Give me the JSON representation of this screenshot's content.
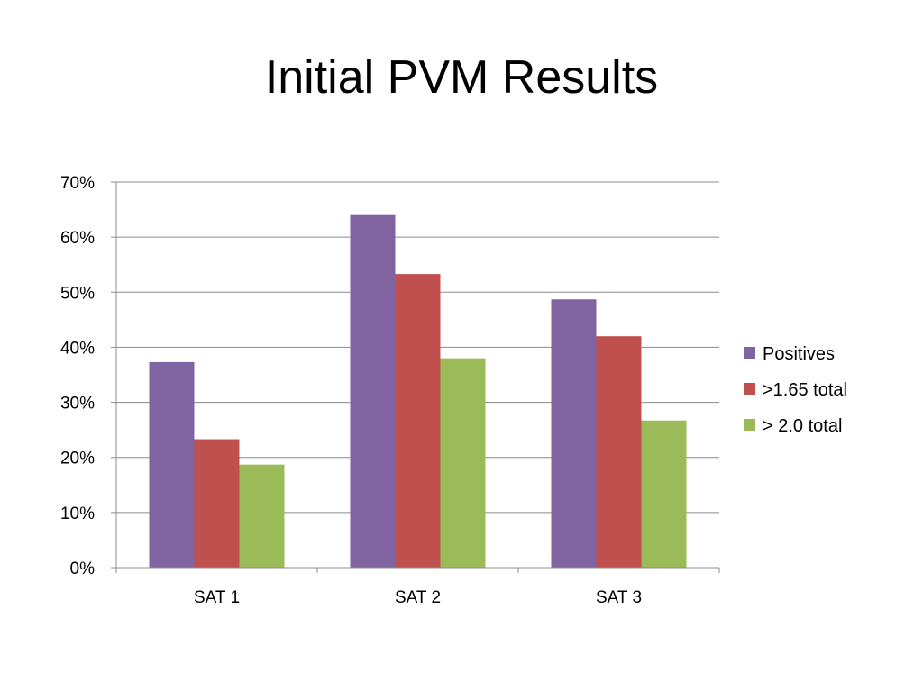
{
  "slide": {
    "title": "Initial PVM Results"
  },
  "chart_data": {
    "type": "bar",
    "categories": [
      "SAT 1",
      "SAT 2",
      "SAT 3"
    ],
    "series": [
      {
        "name": "Positives",
        "values": [
          37.3,
          64.0,
          48.7
        ],
        "color": "#8064a2"
      },
      {
        "name": ">1.65 total",
        "values": [
          23.3,
          53.3,
          42.0
        ],
        "color": "#c0504d"
      },
      {
        "name": "> 2.0 total",
        "values": [
          18.7,
          38.0,
          26.7
        ],
        "color": "#9bbb59"
      }
    ],
    "ylim": [
      0,
      70
    ],
    "yticks": [
      0,
      10,
      20,
      30,
      40,
      50,
      60,
      70
    ],
    "ytick_labels": [
      "0%",
      "10%",
      "20%",
      "30%",
      "40%",
      "50%",
      "60%",
      "70%"
    ],
    "grid": true,
    "legend_position": "right",
    "xlabel": "",
    "ylabel": ""
  }
}
